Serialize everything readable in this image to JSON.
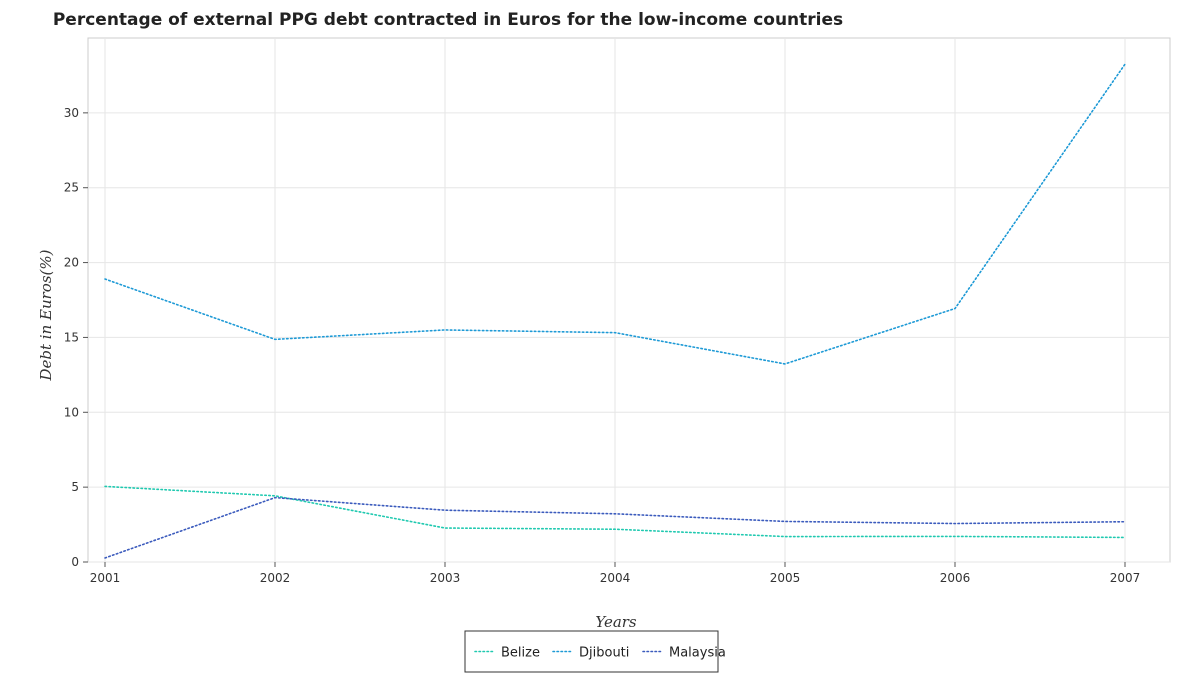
{
  "chart_data": {
    "type": "line",
    "title": "Percentage of external PPG debt contracted in Euros for the low-income countries",
    "xlabel": "Years",
    "ylabel": "Debt in Euros(%)",
    "categories": [
      "2001",
      "2002",
      "2003",
      "2004",
      "2005",
      "2006",
      "2007"
    ],
    "ylim": [
      0,
      35
    ],
    "yticks": [
      0,
      5,
      10,
      15,
      20,
      25,
      30
    ],
    "grid": true,
    "legend_position": "bottom-center",
    "series": [
      {
        "name": "Belize",
        "color": "#20c9b0",
        "values": [
          5.05,
          4.42,
          2.27,
          2.19,
          1.7,
          1.71,
          1.64
        ]
      },
      {
        "name": "Djibouti",
        "color": "#1e9ad6",
        "values": [
          18.9,
          14.87,
          15.5,
          15.32,
          13.23,
          16.93,
          33.25
        ]
      },
      {
        "name": "Malaysia",
        "color": "#3b5bbd",
        "values": [
          0.27,
          4.3,
          3.46,
          3.22,
          2.71,
          2.57,
          2.69
        ]
      }
    ]
  }
}
